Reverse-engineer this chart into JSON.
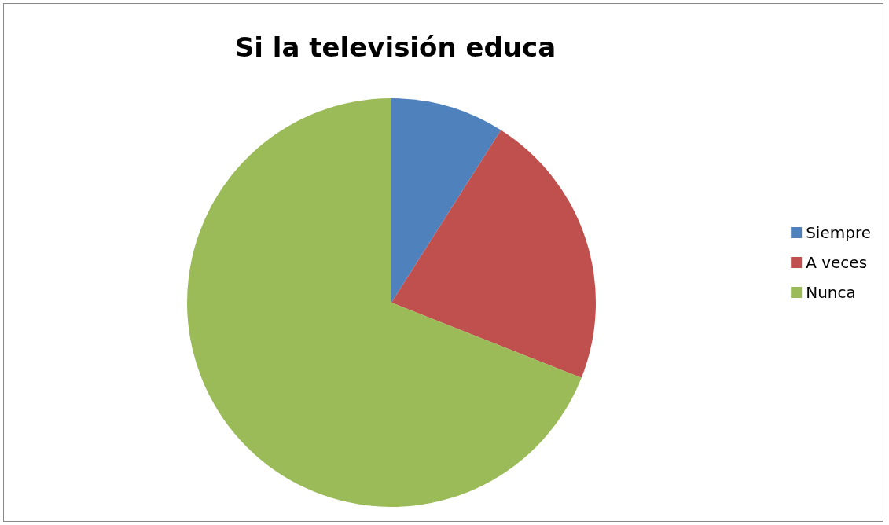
{
  "chart_data": {
    "type": "pie",
    "title": "Si la televisión educa",
    "categories": [
      "Siempre",
      "A veces",
      "Nunca"
    ],
    "values": [
      9,
      22,
      69
    ],
    "colors": [
      "#4f81bd",
      "#c0504d",
      "#9bbb59"
    ],
    "legend": "right"
  }
}
